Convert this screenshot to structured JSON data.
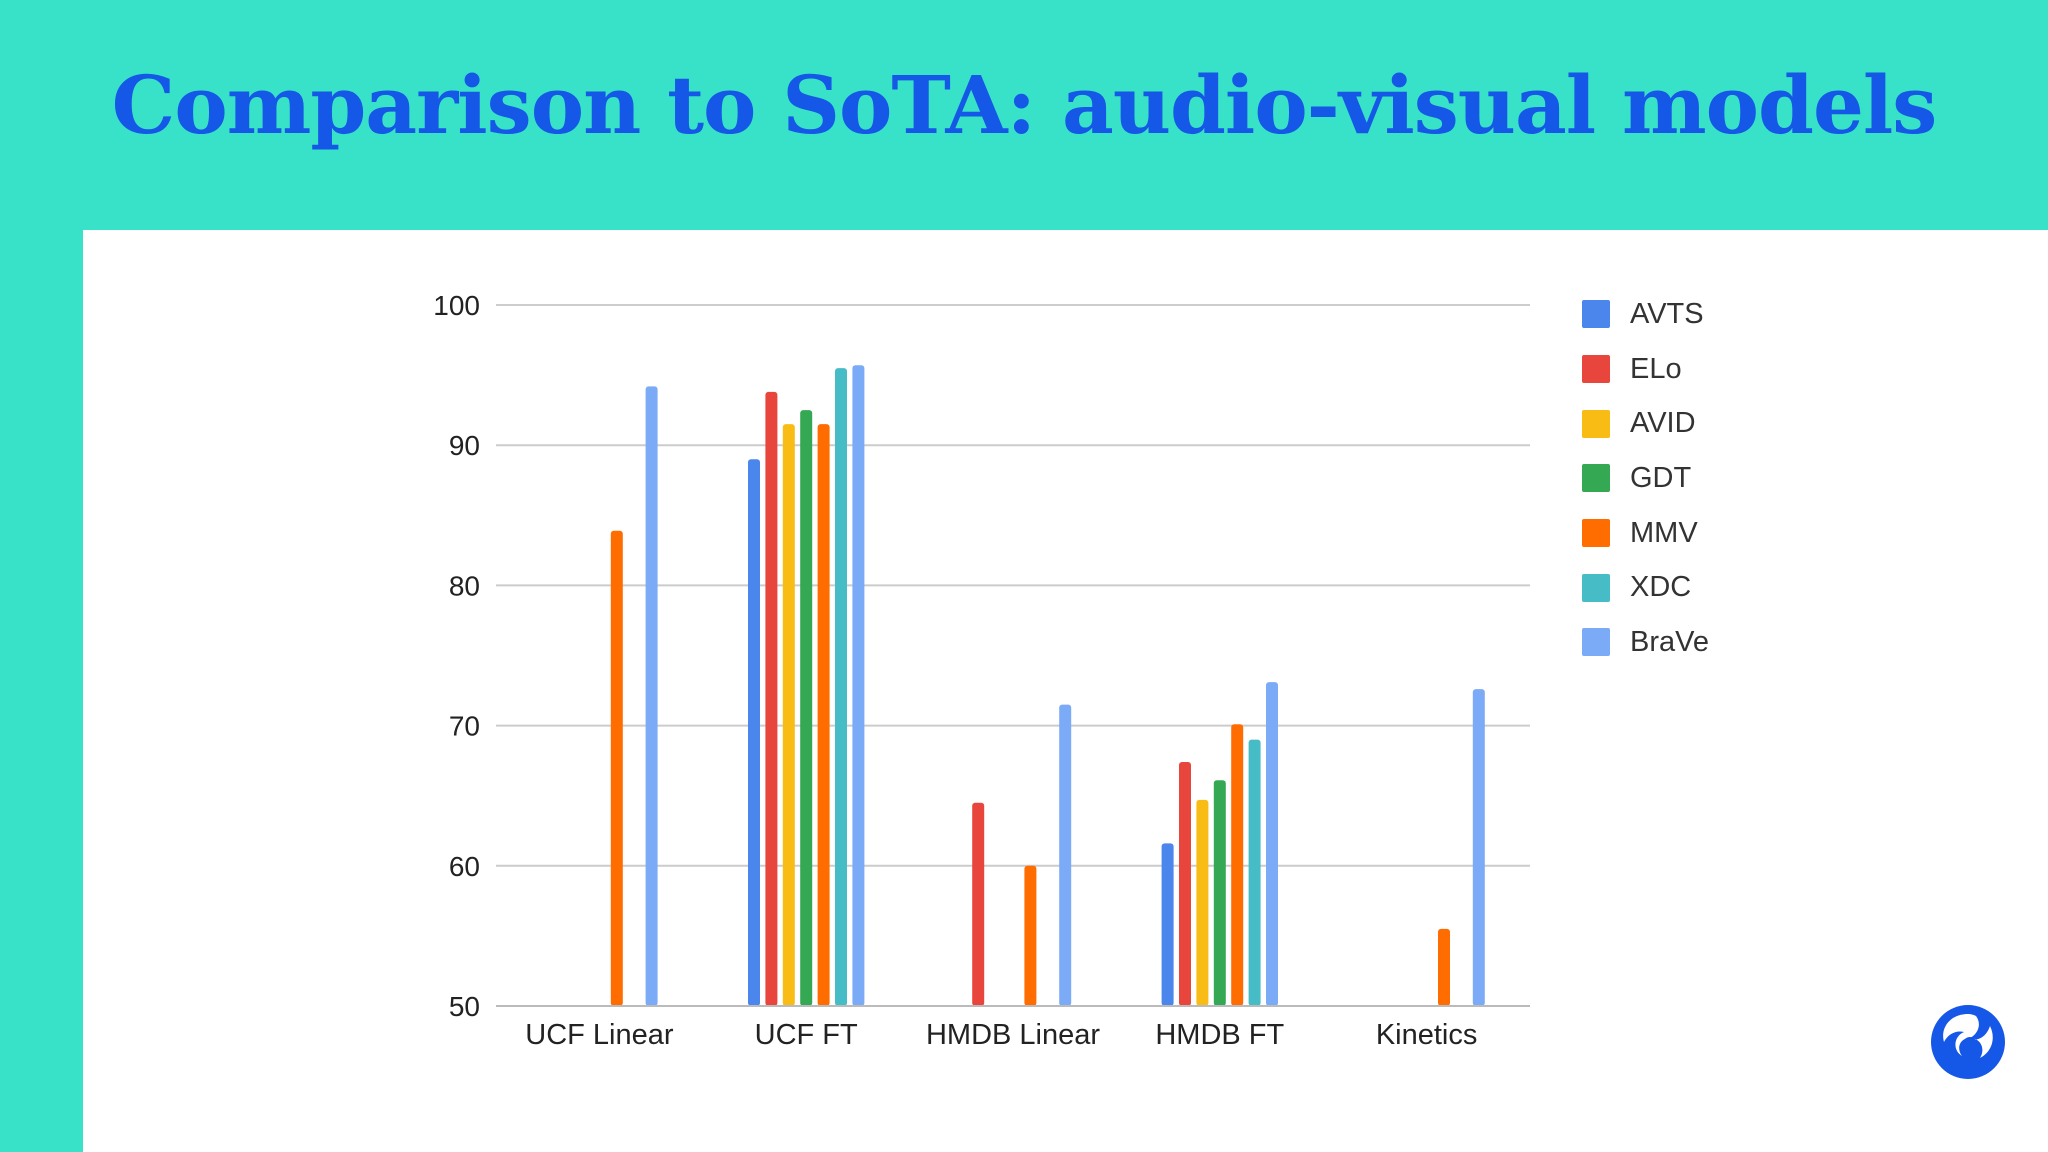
{
  "slide": {
    "title": "Comparison to SoTA: audio-visual models"
  },
  "logo": {
    "icon": "deepmind-logo-icon",
    "color": "#1557e6"
  },
  "chart_data": {
    "type": "bar",
    "title": "",
    "xlabel": "",
    "ylabel": "",
    "ylim": [
      50,
      100
    ],
    "yticks": [
      50,
      60,
      70,
      80,
      90,
      100
    ],
    "grid": true,
    "legend_position": "right",
    "categories": [
      "UCF Linear",
      "UCF FT",
      "HMDB Linear",
      "HMDB FT",
      "Kinetics"
    ],
    "series": [
      {
        "name": "AVTS",
        "color": "#4a86ec",
        "values": [
          null,
          89.0,
          null,
          61.6,
          null
        ]
      },
      {
        "name": "ELo",
        "color": "#e8453c",
        "values": [
          null,
          93.8,
          64.5,
          67.4,
          null
        ]
      },
      {
        "name": "AVID",
        "color": "#f9bc15",
        "values": [
          null,
          91.5,
          null,
          64.7,
          null
        ]
      },
      {
        "name": "GDT",
        "color": "#34a853",
        "values": [
          null,
          92.5,
          null,
          66.1,
          null
        ]
      },
      {
        "name": "MMV",
        "color": "#ff6d01",
        "values": [
          83.9,
          91.5,
          60.0,
          70.1,
          55.5
        ]
      },
      {
        "name": "XDC",
        "color": "#46bdc6",
        "values": [
          null,
          95.5,
          null,
          69.0,
          null
        ]
      },
      {
        "name": "BraVe",
        "color": "#7baaf7",
        "values": [
          94.2,
          95.7,
          71.5,
          73.1,
          72.6
        ]
      }
    ]
  }
}
